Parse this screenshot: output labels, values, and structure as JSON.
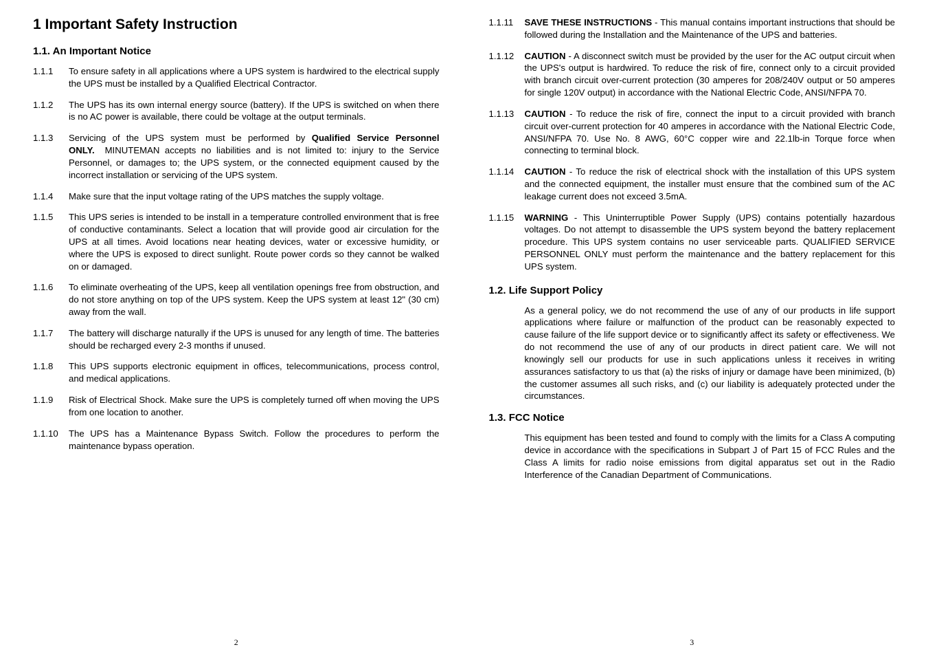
{
  "left": {
    "h1": "1   Important Safety Instruction",
    "s1": {
      "num": "1.1.",
      "title": "An Important Notice"
    },
    "items": [
      {
        "num": "1.1.1",
        "html": "To ensure safety in all applications where a UPS system is hardwired to the electrical supply the UPS must be installed by a Qualified Electrical Contractor."
      },
      {
        "num": "1.1.2",
        "html": "The UPS has its own internal energy source (battery). If the UPS is switched on when there is no AC power is available, there could be voltage at the output terminals."
      },
      {
        "num": "1.1.3",
        "html": "Servicing of the UPS system must be performed by <span class=\"bold\">Qualified Service Personnel ONLY.</span>&nbsp;&nbsp;MINUTEMAN accepts no liabilities and is not limited to: injury to the Service Personnel, or damages to; the UPS system, or the connected equipment caused by the incorrect installation or servicing of the UPS system."
      },
      {
        "num": "1.1.4",
        "html": "Make sure that the input voltage rating of the UPS matches the supply voltage."
      },
      {
        "num": "1.1.5",
        "html": "This UPS series is intended to be install in a temperature controlled environment that is free of conductive contaminants. Select a location that will provide good air circulation for the UPS at all times. Avoid locations near heating devices, water or excessive humidity, or where the UPS is exposed to direct sunlight. Route power cords so they cannot be walked on or damaged."
      },
      {
        "num": "1.1.6",
        "html": "To eliminate overheating of the UPS, keep all ventilation openings free from obstruction, and do not store anything on top of the UPS system. Keep the UPS system at least 12\" (30 cm) away from the wall."
      },
      {
        "num": "1.1.7",
        "html": "The battery will discharge naturally if the UPS is unused for any length of time. The batteries should be recharged every 2-3 months if unused."
      },
      {
        "num": "1.1.8",
        "html": "This UPS supports electronic equipment in offices, telecommunications, process control, and medical applications."
      },
      {
        "num": "1.1.9",
        "html": "Risk of Electrical Shock. Make sure the UPS is completely turned off when moving the UPS from one location to another."
      },
      {
        "num": "1.1.10",
        "html": "The UPS has a Maintenance Bypass Switch. Follow the procedures to perform the maintenance bypass operation."
      }
    ],
    "page": "2"
  },
  "right": {
    "items": [
      {
        "num": "1.1.11",
        "html": "<span class=\"bold\">SAVE THESE INSTRUCTIONS</span> - This manual contains important instructions that should be followed during the Installation and the Maintenance of the UPS and batteries."
      },
      {
        "num": "1.1.12",
        "html": "<span class=\"bold\">CAUTION</span> - A disconnect switch must be provided by the user for the AC output circuit when the UPS's output is hardwired. To reduce the risk of fire, connect only to a circuit provided with branch circuit over-current protection (30 amperes for 208/240V output or 50 amperes for single 120V output) in accordance with the National Electric Code, ANSI/NFPA 70."
      },
      {
        "num": "1.1.13",
        "html": "<span class=\"bold\">CAUTION</span> - To reduce the risk of fire, connect the input to a circuit provided with branch circuit over-current protection for 40 amperes in accordance with the National Electric Code, ANSI/NFPA 70. Use No. 8 AWG, 60°C copper wire and 22.1lb-in Torque force when connecting to terminal block."
      },
      {
        "num": "1.1.14",
        "html": "<span class=\"bold\">CAUTION</span> - To reduce the risk of electrical shock with the installation of this UPS system and the connected equipment, the installer must ensure that the combined sum of the AC leakage current does not exceed 3.5mA."
      },
      {
        "num": "1.1.15",
        "html": "<span class=\"bold\">WARNING</span> - This Uninterruptible Power Supply (UPS) contains potentially hazardous voltages. Do not attempt to disassemble the UPS system beyond the battery replacement procedure. This UPS system contains no user serviceable parts. QUALIFIED SERVICE PERSONNEL ONLY must perform the maintenance and the battery replacement for this UPS system."
      }
    ],
    "s2": {
      "num": "1.2.",
      "title": "Life Support Policy",
      "body": "As a general policy, we do not recommend the use of any of our products in life support applications where failure or malfunction of the product can be reasonably expected to cause failure of the life support device or to significantly affect its safety or effectiveness. We do not recommend the use of any of our products in direct patient care. We will not knowingly sell our products for use in such applications unless it receives in writing assurances satisfactory to us that (a) the risks of injury or damage have been minimized, (b) the customer assumes all such risks, and (c) our liability is adequately protected under the circumstances."
    },
    "s3": {
      "num": "1.3.",
      "title": "FCC Notice",
      "body": "This equipment has been tested and found to comply with the limits for a Class A computing device in accordance with the specifications in Subpart J of Part 15 of FCC Rules and the Class A limits for radio noise emissions from digital apparatus set out in the Radio Interference of the Canadian Department of Communications."
    },
    "page": "3"
  }
}
